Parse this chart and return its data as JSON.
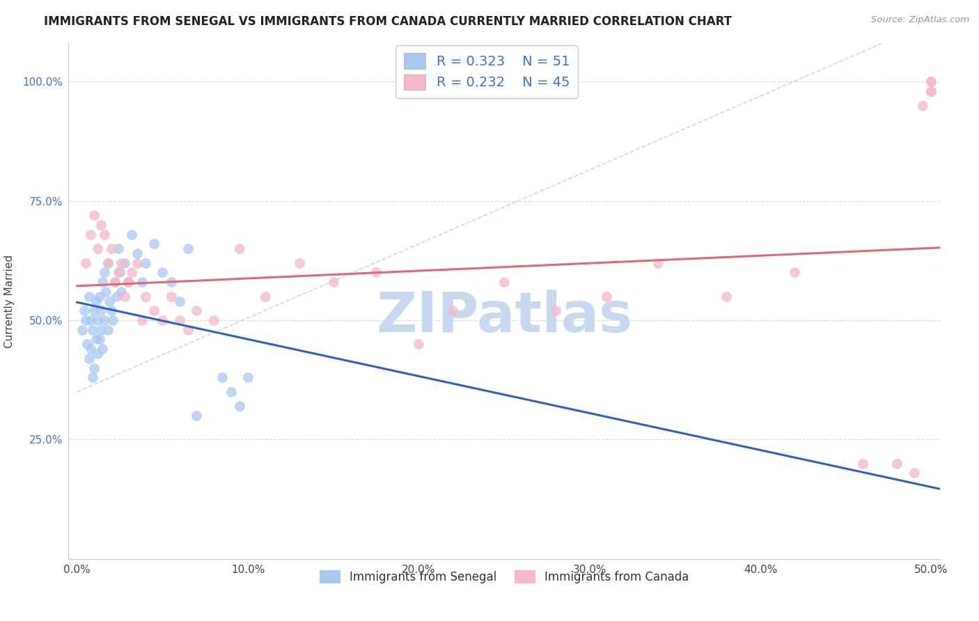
{
  "title": "IMMIGRANTS FROM SENEGAL VS IMMIGRANTS FROM CANADA CURRENTLY MARRIED CORRELATION CHART",
  "source_text": "Source: ZipAtlas.com",
  "ylabel": "Currently Married",
  "xlim": [
    -0.005,
    0.505
  ],
  "ylim": [
    0.0,
    1.08
  ],
  "xtick_labels": [
    "0.0%",
    "10.0%",
    "20.0%",
    "30.0%",
    "40.0%",
    "50.0%"
  ],
  "xtick_vals": [
    0.0,
    0.1,
    0.2,
    0.3,
    0.4,
    0.5
  ],
  "ytick_labels": [
    "25.0%",
    "50.0%",
    "75.0%",
    "100.0%"
  ],
  "ytick_vals": [
    0.25,
    0.5,
    0.75,
    1.0
  ],
  "r_senegal": 0.323,
  "n_senegal": 51,
  "r_canada": 0.232,
  "n_canada": 45,
  "color_senegal": "#a8c8f0",
  "color_canada": "#f5b8c8",
  "trendline_senegal_color": "#3060c0",
  "trendline_canada_color": "#e06878",
  "trendline_dashed_color": "#b0c8e8",
  "watermark_color": "#c8d8ee",
  "background_color": "#ffffff",
  "grid_color": "#d8d8d8",
  "legend_text_color": "#4472c4",
  "senegal_x": [
    0.003,
    0.004,
    0.005,
    0.006,
    0.007,
    0.007,
    0.008,
    0.008,
    0.009,
    0.009,
    0.01,
    0.01,
    0.011,
    0.011,
    0.012,
    0.012,
    0.013,
    0.013,
    0.014,
    0.014,
    0.015,
    0.015,
    0.016,
    0.016,
    0.017,
    0.018,
    0.018,
    0.019,
    0.02,
    0.021,
    0.022,
    0.023,
    0.024,
    0.025,
    0.026,
    0.028,
    0.03,
    0.032,
    0.035,
    0.038,
    0.04,
    0.045,
    0.05,
    0.055,
    0.06,
    0.065,
    0.07,
    0.085,
    0.09,
    0.095,
    0.1
  ],
  "senegal_y": [
    0.48,
    0.52,
    0.5,
    0.45,
    0.42,
    0.55,
    0.5,
    0.44,
    0.48,
    0.38,
    0.52,
    0.4,
    0.46,
    0.54,
    0.5,
    0.43,
    0.55,
    0.46,
    0.52,
    0.48,
    0.58,
    0.44,
    0.6,
    0.5,
    0.56,
    0.48,
    0.62,
    0.54,
    0.52,
    0.5,
    0.58,
    0.55,
    0.65,
    0.6,
    0.56,
    0.62,
    0.58,
    0.68,
    0.64,
    0.58,
    0.62,
    0.66,
    0.6,
    0.58,
    0.54,
    0.65,
    0.3,
    0.38,
    0.35,
    0.32,
    0.38
  ],
  "canada_x": [
    0.005,
    0.008,
    0.01,
    0.012,
    0.014,
    0.016,
    0.018,
    0.02,
    0.022,
    0.024,
    0.026,
    0.028,
    0.03,
    0.032,
    0.035,
    0.038,
    0.04,
    0.045,
    0.05,
    0.055,
    0.06,
    0.065,
    0.07,
    0.08,
    0.095,
    0.11,
    0.13,
    0.15,
    0.175,
    0.2,
    0.22,
    0.25,
    0.28,
    0.31,
    0.34,
    0.38,
    0.42,
    0.46,
    0.48,
    0.49,
    0.495,
    0.5,
    0.5,
    0.5,
    0.5
  ],
  "canada_y": [
    0.62,
    0.68,
    0.72,
    0.65,
    0.7,
    0.68,
    0.62,
    0.65,
    0.58,
    0.6,
    0.62,
    0.55,
    0.58,
    0.6,
    0.62,
    0.5,
    0.55,
    0.52,
    0.5,
    0.55,
    0.5,
    0.48,
    0.52,
    0.5,
    0.65,
    0.55,
    0.62,
    0.58,
    0.6,
    0.45,
    0.52,
    0.58,
    0.52,
    0.55,
    0.62,
    0.55,
    0.6,
    0.2,
    0.2,
    0.18,
    0.95,
    0.98,
    1.0,
    1.0,
    0.98
  ]
}
